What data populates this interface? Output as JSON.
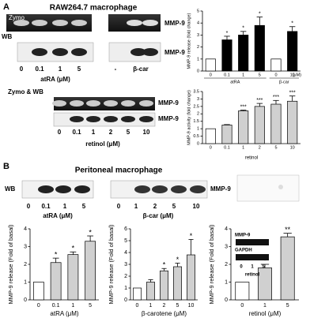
{
  "panel_labels": [
    "A",
    "B"
  ],
  "section_a": {
    "title": "RAW264.7 macrophage",
    "zymo": "Zymo",
    "wb": "WB",
    "band": "MMP-9",
    "lanes_atra": [
      "0",
      "0.1",
      "1",
      "5"
    ],
    "atra_label": "atRA (μM)",
    "lanes_bcar": [
      "-",
      "β-car"
    ],
    "zymo_wb": "Zymo & WB",
    "lanes_retinol": [
      "0",
      "0.1",
      "1",
      "2",
      "5",
      "10"
    ],
    "retinol_label": "retinol (μM)"
  },
  "section_b": {
    "title": "Peritoneal macrophage",
    "wb": "WB",
    "band": "MMP-9",
    "lanes_atra": [
      "0",
      "0.1",
      "1",
      "5"
    ],
    "atra_label": "atRA (μM)",
    "lanes_bcar": [
      "0",
      "1",
      "2",
      "5",
      "10"
    ],
    "bcar_label": "β-car (μM)",
    "inset": {
      "band": "MMP-9",
      "control": "GAPDH",
      "lanes": [
        "0",
        "1",
        "5"
      ],
      "label": "retinol"
    }
  },
  "chart_data": [
    {
      "type": "bar",
      "y_label": "MMP-9 release (fold change)",
      "categories": [
        "0",
        "0.1",
        "1",
        "5",
        "0",
        "10"
      ],
      "values": [
        1,
        2.6,
        3.0,
        3.8,
        1,
        3.3
      ],
      "errors": [
        0,
        0.3,
        0.3,
        0.7,
        0,
        0.4
      ],
      "annotations": [
        null,
        "*",
        "*",
        "*",
        null,
        "*"
      ],
      "colors": [
        "#ffffff",
        "#000000",
        "#000000",
        "#000000",
        "#ffffff",
        "#000000"
      ],
      "groups": [
        "atRA",
        "β-car"
      ],
      "unit": "(μM)",
      "ylim": [
        0,
        5
      ],
      "yticks": [
        0,
        1,
        2,
        3,
        4,
        5
      ]
    },
    {
      "type": "bar",
      "y_label": "MMP-9 activity (fold change)",
      "x_label": "retinol",
      "categories": [
        "0",
        "0.1",
        "1",
        "2",
        "5",
        "10"
      ],
      "values": [
        1,
        1.25,
        2.2,
        2.5,
        2.65,
        2.85
      ],
      "errors": [
        0,
        0.03,
        0.05,
        0.2,
        0.25,
        0.35
      ],
      "annotations": [
        null,
        null,
        "***",
        "***",
        "***",
        "***"
      ],
      "colors": [
        "#ffffff",
        "#d0d0d0",
        "#d0d0d0",
        "#d0d0d0",
        "#d0d0d0",
        "#d0d0d0"
      ],
      "ylim": [
        0,
        3.5
      ],
      "yticks": [
        0,
        0.5,
        1,
        1.5,
        2,
        2.5,
        3,
        3.5
      ]
    },
    {
      "type": "bar",
      "y_label": "MMP-9 release (Fold of basal)",
      "x_label": "atRA (μM)",
      "categories": [
        "0",
        "0.1",
        "1",
        "5"
      ],
      "values": [
        1,
        2.1,
        2.55,
        3.3
      ],
      "errors": [
        0,
        0.25,
        0.15,
        0.3
      ],
      "annotations": [
        null,
        "*",
        "*",
        "*"
      ],
      "colors": [
        "#ffffff",
        "#d0d0d0",
        "#d0d0d0",
        "#d0d0d0"
      ],
      "ylim": [
        0,
        4
      ],
      "yticks": [
        0,
        1,
        2,
        3,
        4
      ]
    },
    {
      "type": "bar",
      "y_label": "MMP-9 release (Fold of basal)",
      "x_label": "β-carotene (μM)",
      "categories": [
        "0",
        "1",
        "2",
        "5",
        "10"
      ],
      "values": [
        1,
        1.5,
        2.45,
        2.8,
        3.8
      ],
      "errors": [
        0,
        0.2,
        0.2,
        0.3,
        1.3
      ],
      "annotations": [
        null,
        null,
        "*",
        "*",
        "*"
      ],
      "colors": [
        "#ffffff",
        "#d0d0d0",
        "#d0d0d0",
        "#d0d0d0",
        "#d0d0d0"
      ],
      "ylim": [
        0,
        6
      ],
      "yticks": [
        0,
        1,
        2,
        3,
        4,
        5,
        6
      ]
    },
    {
      "type": "bar",
      "y_label": "MMP-9 release (Fold of basal)",
      "x_label": "retinol (μM)",
      "categories": [
        "0",
        "1",
        "5"
      ],
      "values": [
        1,
        1.8,
        3.55
      ],
      "errors": [
        0,
        0.2,
        0.2
      ],
      "annotations": [
        null,
        "*",
        "**"
      ],
      "colors": [
        "#ffffff",
        "#d0d0d0",
        "#d0d0d0"
      ],
      "ylim": [
        0,
        4
      ],
      "yticks": [
        0,
        1,
        2,
        3,
        4
      ]
    }
  ]
}
